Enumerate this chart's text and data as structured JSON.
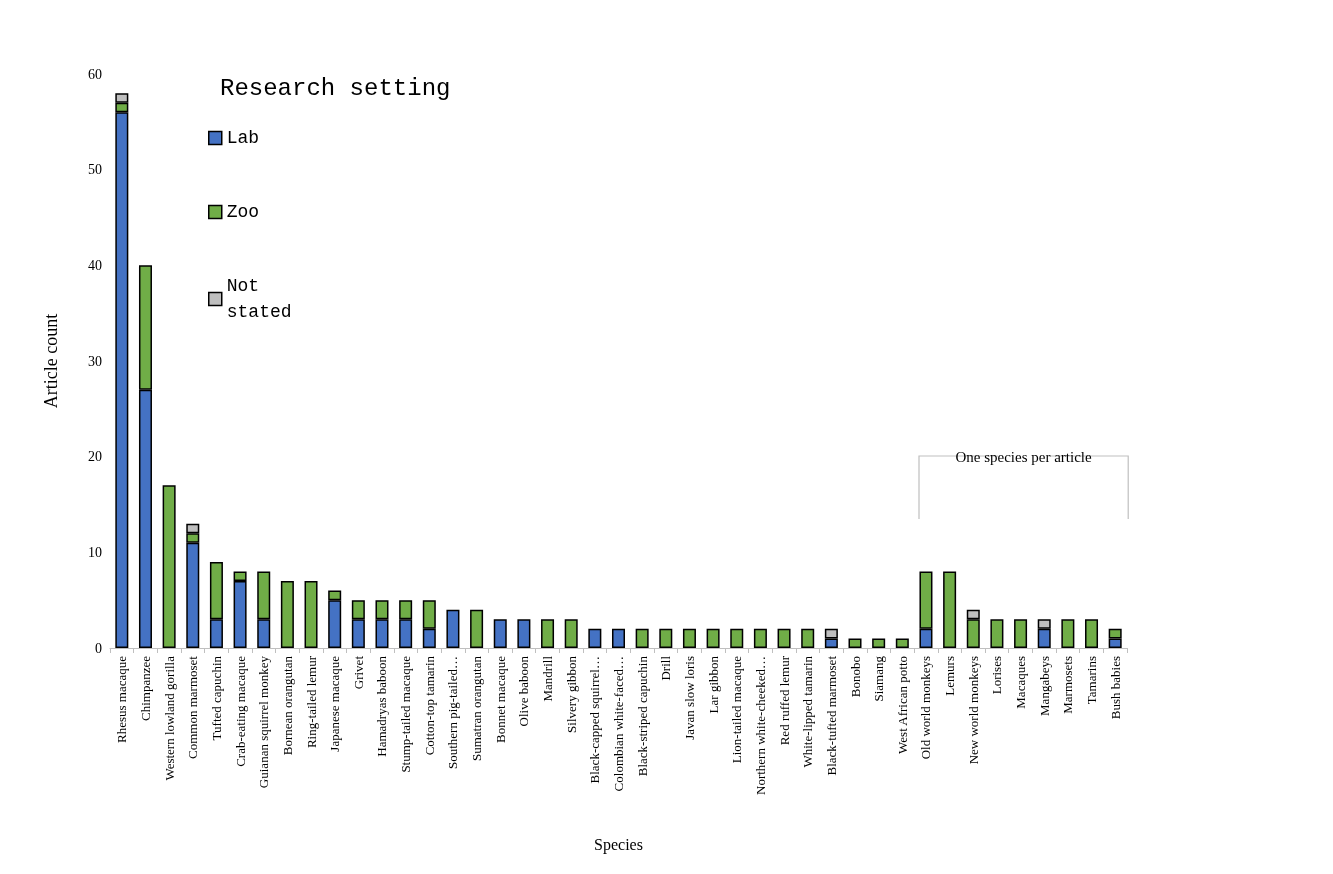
{
  "chart_data": {
    "type": "bar",
    "stacked": true,
    "xlabel": "Species",
    "ylabel": "Article count",
    "legend_title": "Research setting",
    "legend": "top left",
    "categories": [
      "Rhesus macaque",
      "Chimpanzee",
      "Western lowland gorilla",
      "Common marmoset",
      "Tufted capuchin",
      "Crab-eating macaque",
      "Guianan squirrel monkey",
      "Bornean orangutan",
      "Ring-tailed lemur",
      "Japanese macaque",
      "Grivet",
      "Hamadryas baboon",
      "Stump-tailed macaque",
      "Cotton-top tamarin",
      "Southern pig-tailed…",
      "Sumatran orangutan",
      "Bonnet macaque",
      "Olive baboon",
      "Mandrill",
      "Silvery gibbon",
      "Black-capped squirrel…",
      "Colombian white-faced…",
      "Black-striped capuchin",
      "Drill",
      "Javan slow loris",
      "Lar gibbon",
      "Lion-tailed macaque",
      "Northern white-cheeked…",
      "Red ruffed lemur",
      "White-lipped tamarin",
      "Black-tufted marmoset",
      "Bonobo",
      "Siamang",
      "West African potto",
      "Old world monkeys",
      "Lemurs",
      "New world monkeys",
      "Lorises",
      "Macaques",
      "Mangabeys",
      "Marmosets",
      "Tamarins",
      "Bush babies"
    ],
    "series": [
      {
        "name": "Lab",
        "color": "#4472c4",
        "values": [
          56,
          27,
          0,
          11,
          3,
          7,
          3,
          0,
          0,
          5,
          3,
          3,
          3,
          2,
          4,
          0,
          3,
          3,
          0,
          0,
          2,
          2,
          0,
          0,
          0,
          0,
          0,
          0,
          0,
          0,
          1,
          0,
          0,
          0,
          2,
          0,
          0,
          0,
          0,
          2,
          0,
          0,
          1
        ]
      },
      {
        "name": "Zoo",
        "color": "#70ad47",
        "values": [
          1,
          13,
          17,
          1,
          6,
          1,
          5,
          7,
          7,
          1,
          2,
          2,
          2,
          3,
          0,
          4,
          0,
          0,
          3,
          3,
          0,
          0,
          2,
          2,
          2,
          2,
          2,
          2,
          2,
          2,
          0,
          1,
          1,
          1,
          6,
          8,
          3,
          3,
          3,
          0,
          3,
          3,
          1
        ]
      },
      {
        "name": "Not stated",
        "color": "#bfbfbf",
        "values": [
          1,
          0,
          0,
          1,
          0,
          0,
          0,
          0,
          0,
          0,
          0,
          0,
          0,
          0,
          0,
          0,
          0,
          0,
          0,
          0,
          0,
          0,
          0,
          0,
          0,
          0,
          0,
          0,
          0,
          0,
          1,
          0,
          0,
          0,
          0,
          0,
          1,
          0,
          0,
          1,
          0,
          0,
          0
        ]
      }
    ],
    "ylim": [
      0,
      60
    ],
    "yticks": [
      0,
      10,
      20,
      30,
      40,
      50,
      60
    ],
    "grid": false,
    "annotations": [
      "One species per article"
    ]
  }
}
